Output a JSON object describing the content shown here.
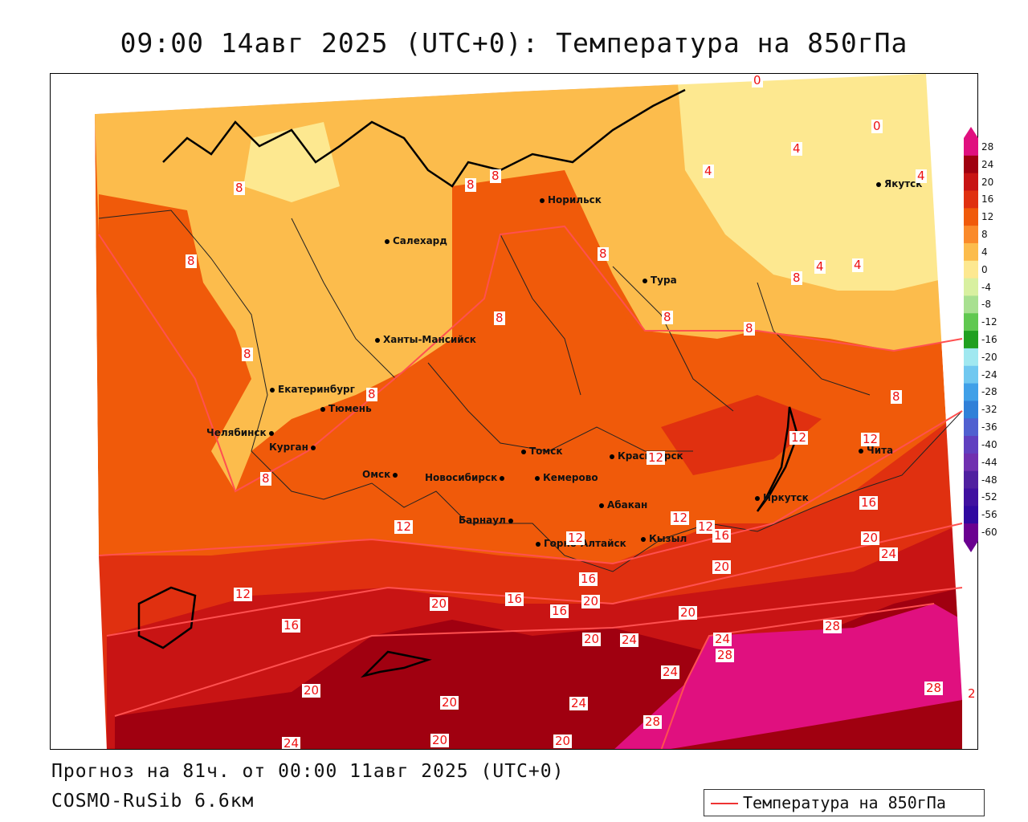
{
  "title": "09:00 14авг 2025 (UTC+0): Температура на 850гПа",
  "footer": {
    "forecast": "Прогноз на 81ч. от 00:00 11авг 2025 (UTC+0)",
    "model": "COSMO-RuSib 6.6км"
  },
  "legend": {
    "label": "Температура на 850гПа",
    "line_color": "#ee3333"
  },
  "colorbar": {
    "ticks": [
      "28",
      "24",
      "20",
      "16",
      "12",
      "8",
      "4",
      "0",
      "-4",
      "-8",
      "-12",
      "-16",
      "-20",
      "-24",
      "-28",
      "-32",
      "-36",
      "-40",
      "-44",
      "-48",
      "-52",
      "-56",
      "-60"
    ],
    "colors": [
      "#e0107f",
      "#a00010",
      "#c81414",
      "#e03010",
      "#f05a0a",
      "#fa8a2a",
      "#fcbc4c",
      "#fde890",
      "#d8f0a0",
      "#a8e090",
      "#60c850",
      "#20a020",
      "#a0e8f0",
      "#70c8f0",
      "#40a0e8",
      "#3080d8",
      "#5060d0",
      "#6040c0",
      "#7030b0",
      "#5020a0",
      "#4010a0",
      "#3008a0",
      "#6a0090"
    ]
  },
  "cities": [
    {
      "name": "Норильск"
    },
    {
      "name": "Салехард"
    },
    {
      "name": "Якутск"
    },
    {
      "name": "Тура"
    },
    {
      "name": "Ханты-Мансийск"
    },
    {
      "name": "Екатеринбург"
    },
    {
      "name": "Тюмень"
    },
    {
      "name": "Челябинск"
    },
    {
      "name": "Курган"
    },
    {
      "name": "Омск"
    },
    {
      "name": "Новосибирск"
    },
    {
      "name": "Томск"
    },
    {
      "name": "Кемерово"
    },
    {
      "name": "Красноярск"
    },
    {
      "name": "Абакан"
    },
    {
      "name": "Барнаул"
    },
    {
      "name": "Горно-Алтайск"
    },
    {
      "name": "Кызыл"
    },
    {
      "name": "Иркутск"
    },
    {
      "name": "Чита"
    }
  ],
  "contour_labels": [
    "0",
    "0",
    "4",
    "4",
    "4",
    "4",
    "4",
    "8",
    "8",
    "8",
    "8",
    "8",
    "8",
    "8",
    "8",
    "8",
    "8",
    "8",
    "8",
    "8",
    "12",
    "12",
    "12",
    "12",
    "12",
    "12",
    "12",
    "12",
    "16",
    "16",
    "16",
    "16",
    "16",
    "16",
    "20",
    "20",
    "20",
    "20",
    "20",
    "20",
    "20",
    "20",
    "20",
    "20",
    "24",
    "24",
    "24",
    "24",
    "24",
    "24",
    "28",
    "28",
    "28",
    "28",
    "2"
  ]
}
